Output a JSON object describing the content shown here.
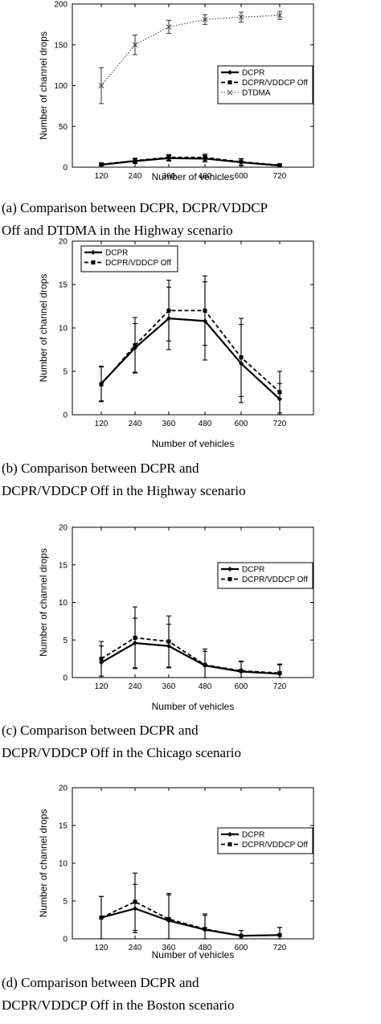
{
  "chart_data": [
    {
      "type": "line",
      "caption": [
        "(a) Comparison between DCPR, DCPR/VDDCP",
        "Off and DTDMA in the Highway scenario"
      ],
      "xlabel": "Number of vehicles",
      "ylabel": "Number of channel drops",
      "categories": [
        "120",
        "240",
        "360",
        "480",
        "600",
        "720"
      ],
      "ylim": [
        0,
        200
      ],
      "yticks": [
        0,
        50,
        100,
        150,
        200
      ],
      "legend_position": "right",
      "series": [
        {
          "name": "DCPR",
          "style": "solid-diamond",
          "values": [
            3,
            7.5,
            11,
            10.5,
            6,
            2
          ],
          "err": [
            1.5,
            3,
            3.5,
            4,
            4,
            1.5
          ]
        },
        {
          "name": "DCPR/VDDCP Off",
          "style": "dashed-square",
          "values": [
            3.5,
            8,
            12,
            12,
            6.5,
            2.5
          ],
          "err": [
            1.5,
            3,
            3.5,
            4,
            4,
            1.5
          ]
        },
        {
          "name": "DTDMA",
          "style": "dotted-x",
          "values": [
            100,
            150,
            172,
            181,
            184,
            186
          ],
          "err": [
            22,
            12,
            8,
            6,
            6,
            5
          ]
        }
      ]
    },
    {
      "type": "line",
      "caption": [
        "(b) Comparison between DCPR and",
        "DCPR/VDDCP Off in the Highway scenario"
      ],
      "xlabel": "Number of vehicles",
      "ylabel": "Number of channel drops",
      "categories": [
        "120",
        "240",
        "360",
        "480",
        "600",
        "720"
      ],
      "ylim": [
        0,
        20
      ],
      "yticks": [
        0,
        5,
        10,
        15,
        20
      ],
      "legend_position": "top-left",
      "series": [
        {
          "name": "DCPR",
          "style": "solid-diamond",
          "values": [
            3.6,
            7.7,
            11.1,
            10.8,
            5.9,
            1.8
          ],
          "err": [
            2.0,
            2.8,
            3.6,
            4.5,
            4.5,
            1.8
          ]
        },
        {
          "name": "DCPR/VDDCP Off",
          "style": "dashed-square",
          "values": [
            3.5,
            8.0,
            12.0,
            12.0,
            6.6,
            2.6
          ],
          "err": [
            2.0,
            3.2,
            3.5,
            4.0,
            4.5,
            2.4
          ]
        }
      ]
    },
    {
      "type": "line",
      "caption": [
        "(c) Comparison between DCPR and",
        "DCPR/VDDCP Off in the Chicago scenario"
      ],
      "xlabel": "Number of vehicles",
      "ylabel": "Number of channel drops",
      "categories": [
        "120",
        "240",
        "360",
        "480",
        "600",
        "720"
      ],
      "ylim": [
        0,
        20
      ],
      "yticks": [
        0,
        5,
        10,
        15,
        20
      ],
      "legend_position": "top-right",
      "series": [
        {
          "name": "DCPR",
          "style": "solid-diamond",
          "values": [
            2.0,
            4.6,
            4.2,
            1.6,
            0.8,
            0.5
          ],
          "err": [
            2.2,
            3.3,
            2.9,
            1.9,
            1.3,
            1.2
          ]
        },
        {
          "name": "DCPR/VDDCP Off",
          "style": "dashed-square",
          "values": [
            2.5,
            5.3,
            4.8,
            1.7,
            0.9,
            0.6
          ],
          "err": [
            2.3,
            4.1,
            3.4,
            2.1,
            1.3,
            1.2
          ]
        }
      ]
    },
    {
      "type": "line",
      "caption": [
        "(d) Comparison between DCPR and",
        "DCPR/VDDCP Off in the Boston scenario"
      ],
      "xlabel": "Number of vehicles",
      "ylabel": "Number of channel drops",
      "categories": [
        "120",
        "240",
        "360",
        "480",
        "600",
        "720"
      ],
      "ylim": [
        0,
        20
      ],
      "yticks": [
        0,
        5,
        10,
        15,
        20
      ],
      "legend_position": "top-right",
      "series": [
        {
          "name": "DCPR",
          "style": "solid-diamond",
          "values": [
            2.8,
            4.0,
            2.4,
            1.2,
            0.4,
            0.5
          ],
          "err": [
            2.8,
            3.2,
            3.4,
            1.9,
            0.7,
            1.0
          ]
        },
        {
          "name": "DCPR/VDDCP Off",
          "style": "dashed-square",
          "values": [
            2.8,
            4.9,
            2.6,
            1.3,
            0.4,
            0.5
          ],
          "err": [
            2.8,
            3.8,
            3.4,
            2.0,
            0.7,
            1.0
          ]
        }
      ]
    }
  ]
}
